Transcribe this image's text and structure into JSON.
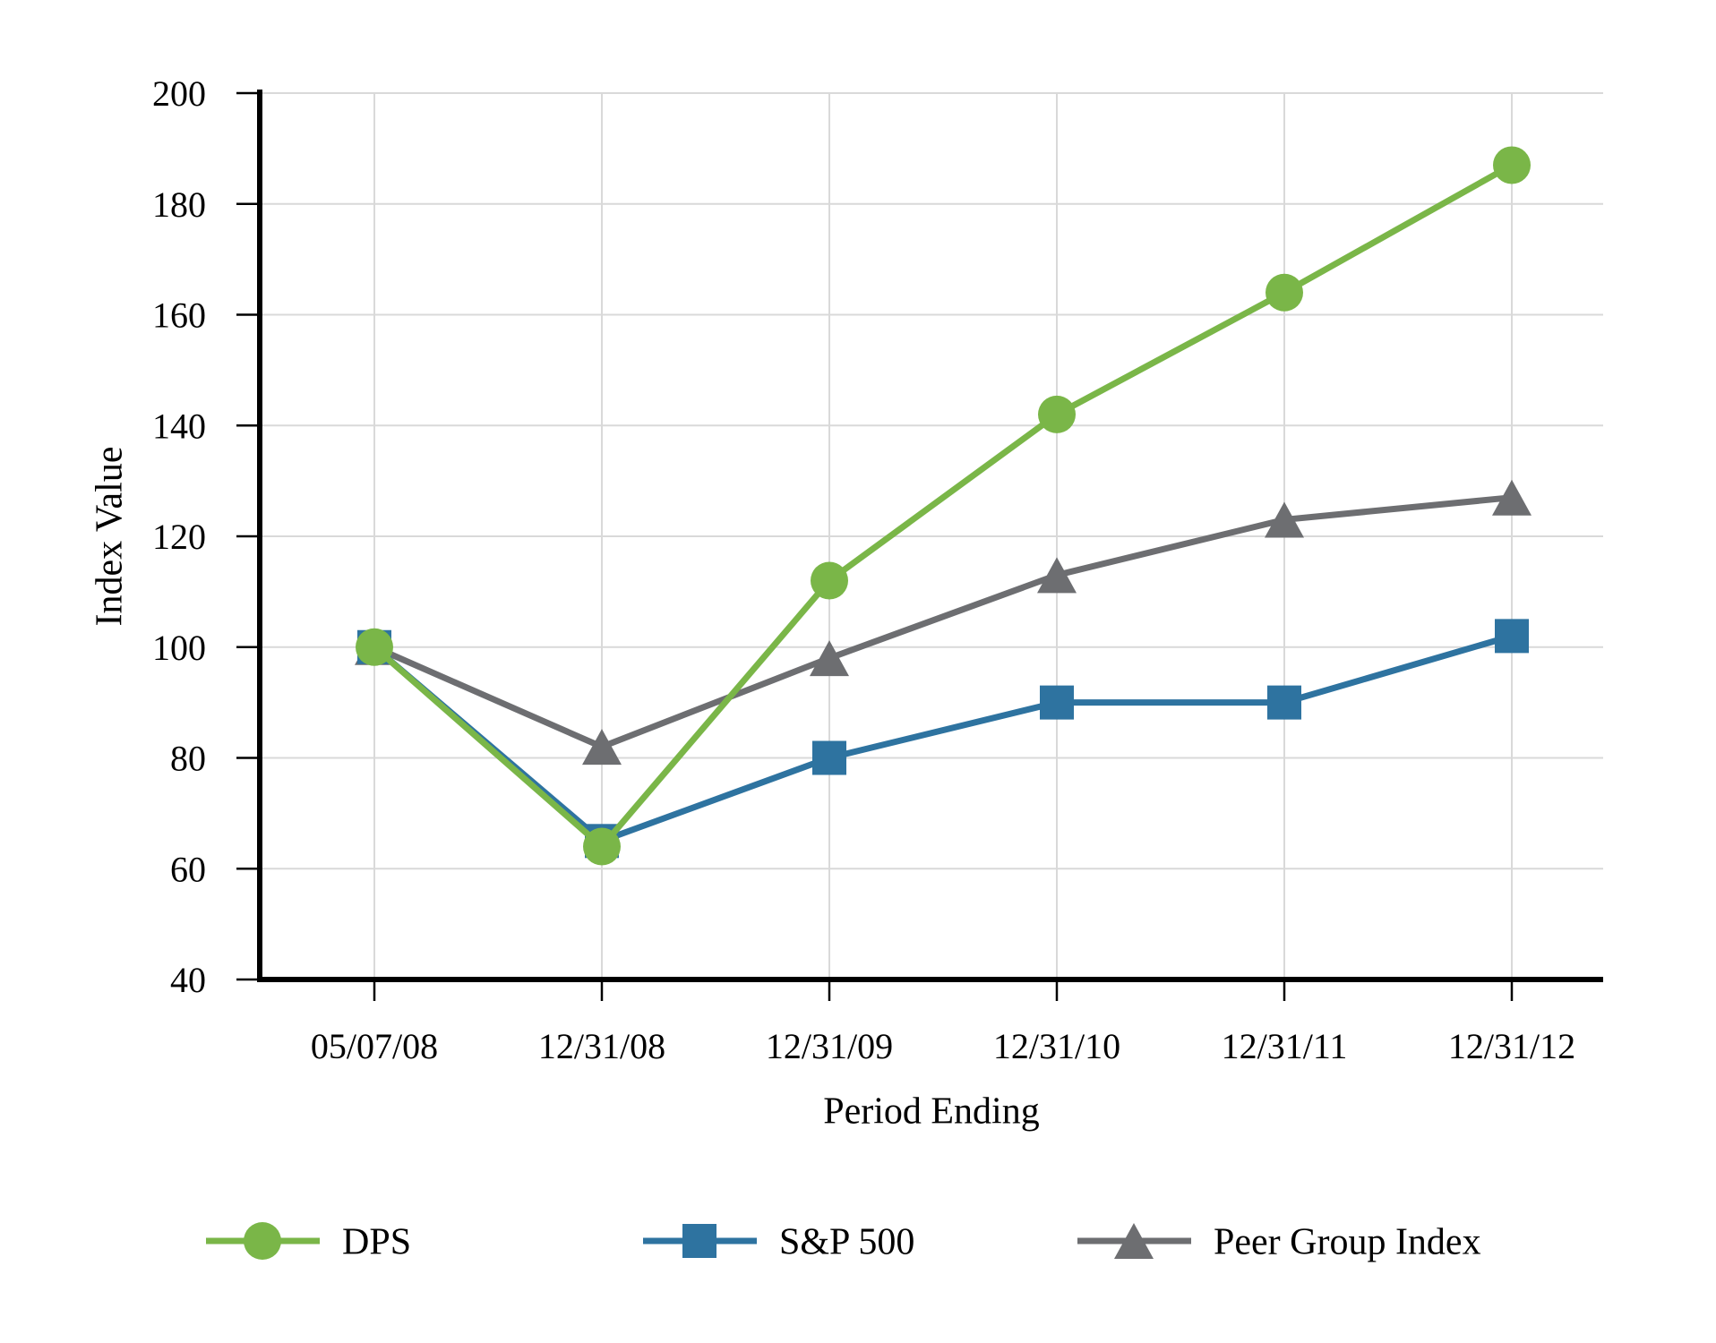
{
  "chart_data": {
    "type": "line",
    "title": "",
    "xlabel": "Period Ending",
    "ylabel": "Index Value",
    "categories": [
      "05/07/08",
      "12/31/08",
      "12/31/09",
      "12/31/10",
      "12/31/11",
      "12/31/12"
    ],
    "series": [
      {
        "name": "DPS",
        "marker": "circle",
        "color": "#7ab648",
        "values": [
          100,
          64,
          112,
          142,
          164,
          187
        ]
      },
      {
        "name": "S&P 500",
        "marker": "square",
        "color": "#2e73a0",
        "values": [
          100,
          65,
          80,
          90,
          90,
          102
        ]
      },
      {
        "name": "Peer Group Index",
        "marker": "triangle",
        "color": "#6d6e71",
        "values": [
          100,
          82,
          98,
          113,
          123,
          127
        ]
      }
    ],
    "ylim": [
      40,
      200
    ],
    "ytick_step": 20,
    "grid": true,
    "gridline_color": "#d9d9d9",
    "axis_color": "#000000",
    "legend_position": "bottom"
  }
}
